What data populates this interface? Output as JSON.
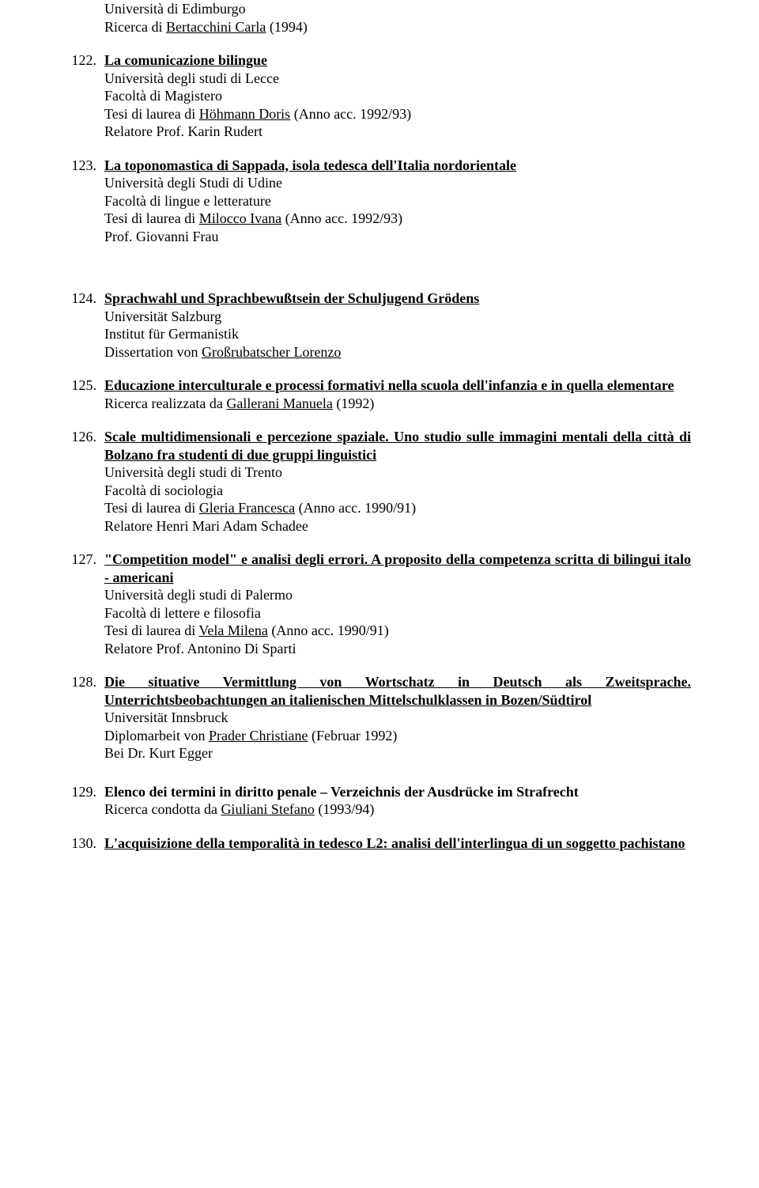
{
  "textColor": "#000000",
  "backgroundColor": "#ffffff",
  "entries": [
    {
      "pre": [
        "Università di Edimburgo",
        [
          "Ricerca di ",
          {
            "u": "Bertacchini Carla"
          },
          " (1994)"
        ]
      ]
    },
    {
      "num": "122.",
      "title": "La comunicazione bilingue",
      "titleStyle": "bold-underline",
      "lines": [
        "Università degli studi di Lecce",
        "Facoltà di Magistero",
        [
          "Tesi di laurea di ",
          {
            "u": "Höhmann Doris"
          },
          " (Anno acc. 1992/93)"
        ],
        "Relatore Prof. Karin Rudert"
      ],
      "gapAfter": false
    },
    {
      "num": "123.",
      "title": "La toponomastica di Sappada, isola tedesca dell'Italia nordorientale",
      "titleStyle": "bold-underline",
      "lines": [
        "Università degli Studi di Udine",
        "Facoltà di lingue e letterature",
        [
          "Tesi di laurea di ",
          {
            "u": "Milocco Ivana"
          },
          " (Anno acc. 1992/93)"
        ],
        "Prof. Giovanni Frau"
      ],
      "gapAfter": true
    },
    {
      "num": "124.",
      "title": "Sprachwahl und Sprachbewußtsein der Schuljugend Grödens",
      "titleStyle": "bold-underline",
      "lines": [
        "Universität Salzburg",
        "Institut für Germanistik",
        [
          "Dissertation von ",
          {
            "u": "Großrubatscher Lorenzo"
          }
        ]
      ]
    },
    {
      "num": "125.",
      "title": "Educazione interculturale e processi formativi nella scuola dell'infanzia e in quella elementare",
      "titleStyle": "bold-underline",
      "justify": true,
      "lines": [
        [
          "Ricerca realizzata da ",
          {
            "u": "Gallerani Manuela"
          },
          " (1992)"
        ]
      ]
    },
    {
      "num": "126.",
      "title": "Scale multidimensionali e percezione spaziale. Uno studio sulle immagini mentali della città di Bolzano fra studenti di due gruppi linguistici",
      "titleStyle": "bold-underline",
      "justify": true,
      "lines": [
        "Università degli studi di Trento",
        "Facoltà di sociologia",
        [
          "Tesi di laurea di ",
          {
            "u": "Gleria Francesca"
          },
          " (Anno acc. 1990/91)"
        ],
        "Relatore Henri Mari Adam Schadee"
      ]
    },
    {
      "num": "127.",
      "title": "\"Competition model\" e analisi degli errori. A proposito della competenza scritta di bilingui italo - americani",
      "titleStyle": "bold-underline",
      "justify": true,
      "lines": [
        "Università degli studi di Palermo",
        "Facoltà di lettere e filosofia",
        [
          "Tesi di laurea di ",
          {
            "u": "Vela Milena"
          },
          " (Anno acc. 1990/91)"
        ],
        "Relatore Prof. Antonino Di Sparti"
      ]
    },
    {
      "num": "128.",
      "title": "Die situative Vermittlung von Wortschatz in Deutsch als Zweitsprache. Unterrichtsbeobachtungen an italienischen Mittelschulklassen in Bozen/Südtirol",
      "titleStyle": "bold-underline",
      "justify": true,
      "lines": [
        "Universität Innsbruck",
        [
          "Diplomarbeit von ",
          {
            "u": "Prader Christiane"
          },
          " (Februar 1992)"
        ],
        "Bei Dr. Kurt Egger"
      ],
      "gapAfterSmall": true
    },
    {
      "num": "129.",
      "titleParts": [
        {
          "b": "Elenco dei termini in diritto penale – Verzeichnis der Ausdrücke im Strafrecht"
        }
      ],
      "lines": [
        [
          "Ricerca condotta da ",
          {
            "u": "Giuliani Stefano"
          },
          " (1993/94)"
        ]
      ]
    },
    {
      "num": "130.",
      "title": "L'acquisizione della temporalità in tedesco L2: analisi dell'interlingua di un soggetto pachistano",
      "titleStyle": "bold-underline",
      "justify": true,
      "lines": []
    }
  ]
}
